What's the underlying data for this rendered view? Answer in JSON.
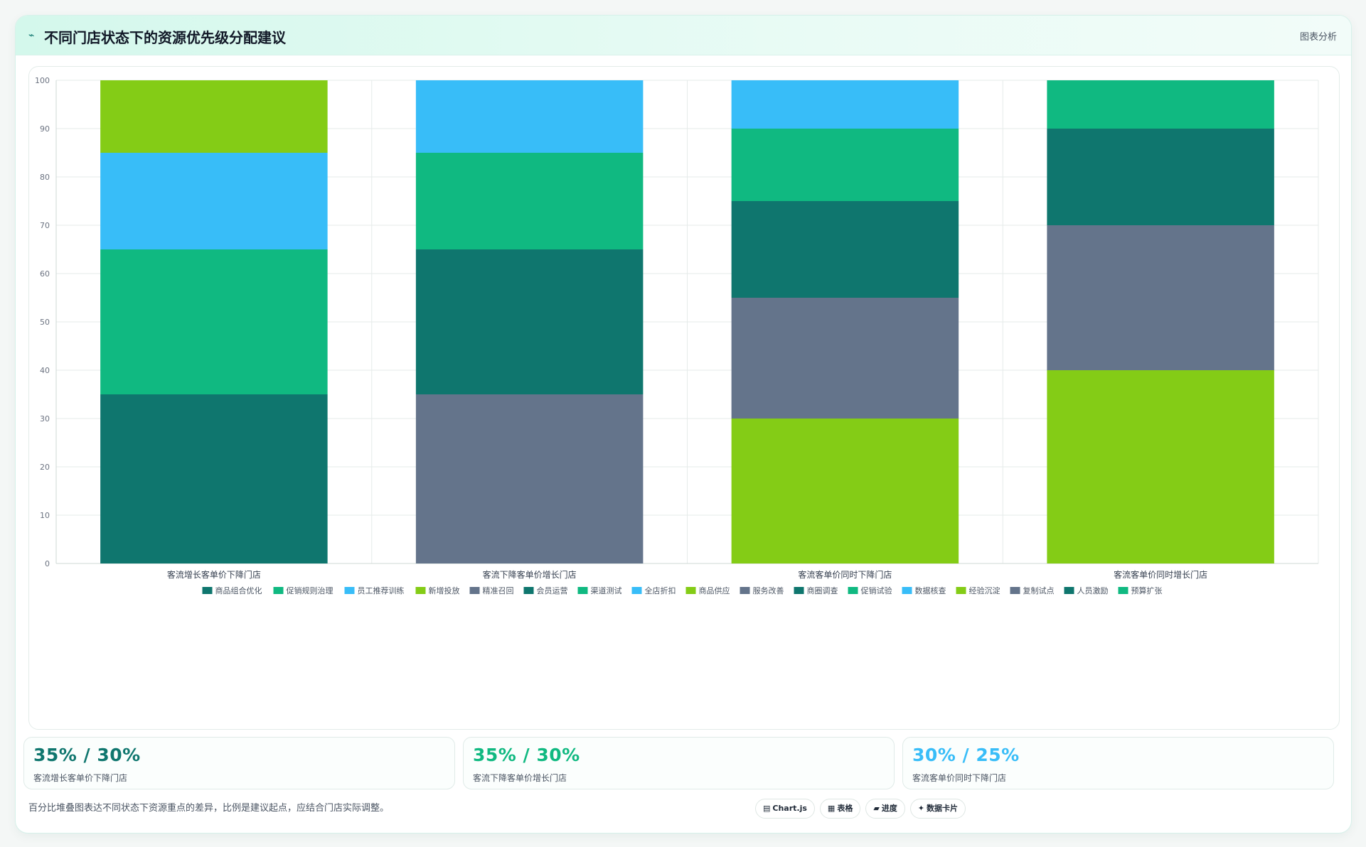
{
  "header": {
    "icon": "sparkle-icon",
    "title": "不同门店状态下的资源优先级分配建议",
    "right_label": "图表分析"
  },
  "chart_data": {
    "type": "bar",
    "stacked": true,
    "title": "",
    "xlabel": "",
    "ylabel": "",
    "ylim": [
      0,
      100
    ],
    "yticks": [
      0,
      10,
      20,
      30,
      40,
      50,
      60,
      70,
      80,
      90,
      100
    ],
    "grid": true,
    "legend_position": "bottom",
    "categories": [
      "客流增长客单价下降门店",
      "客流下降客单价增长门店",
      "客流客单价同时下降门店",
      "客流客单价同时增长门店"
    ],
    "series": [
      {
        "name": "商品组合优化",
        "color": "#0f766e",
        "values": [
          35,
          0,
          0,
          0
        ]
      },
      {
        "name": "促销规则治理",
        "color": "#10b981",
        "values": [
          30,
          0,
          0,
          0
        ]
      },
      {
        "name": "员工推荐训练",
        "color": "#38bdf8",
        "values": [
          20,
          0,
          0,
          0
        ]
      },
      {
        "name": "新增投放",
        "color": "#84cc16",
        "values": [
          15,
          0,
          0,
          0
        ]
      },
      {
        "name": "精准召回",
        "color": "#64748b",
        "values": [
          0,
          35,
          0,
          0
        ]
      },
      {
        "name": "会员运营",
        "color": "#0f766e",
        "values": [
          0,
          30,
          0,
          0
        ]
      },
      {
        "name": "渠道测试",
        "color": "#10b981",
        "values": [
          0,
          20,
          0,
          0
        ]
      },
      {
        "name": "全店折扣",
        "color": "#38bdf8",
        "values": [
          0,
          15,
          0,
          0
        ]
      },
      {
        "name": "商品供应",
        "color": "#84cc16",
        "values": [
          0,
          0,
          30,
          0
        ]
      },
      {
        "name": "服务改善",
        "color": "#64748b",
        "values": [
          0,
          0,
          25,
          0
        ]
      },
      {
        "name": "商圈调查",
        "color": "#0f766e",
        "values": [
          0,
          0,
          20,
          0
        ]
      },
      {
        "name": "促销试验",
        "color": "#10b981",
        "values": [
          0,
          0,
          15,
          0
        ]
      },
      {
        "name": "数据核查",
        "color": "#38bdf8",
        "values": [
          0,
          0,
          10,
          0
        ]
      },
      {
        "name": "经验沉淀",
        "color": "#84cc16",
        "values": [
          0,
          0,
          0,
          40
        ]
      },
      {
        "name": "复制试点",
        "color": "#64748b",
        "values": [
          0,
          0,
          0,
          30
        ]
      },
      {
        "name": "人员激励",
        "color": "#0f766e",
        "values": [
          0,
          0,
          0,
          20
        ]
      },
      {
        "name": "预算扩张",
        "color": "#10b981",
        "values": [
          0,
          0,
          0,
          10
        ]
      }
    ]
  },
  "stats": [
    {
      "value": "35% / 30%",
      "label": "客流增长客单价下降门店",
      "color": "#0f766e"
    },
    {
      "value": "35% / 30%",
      "label": "客流下降客单价增长门店",
      "color": "#10b981"
    },
    {
      "value": "30% / 25%",
      "label": "客流客单价同时下降门店",
      "color": "#38bdf8"
    }
  ],
  "footnote": "百分比堆叠图表达不同状态下资源重点的差异，比例是建议起点，应结合门店实际调整。",
  "chips": [
    {
      "icon": "chart-icon",
      "glyph": "▤",
      "label": "Chart.js"
    },
    {
      "icon": "table-icon",
      "glyph": "▦",
      "label": "表格"
    },
    {
      "icon": "progress-icon",
      "glyph": "▰",
      "label": "进度"
    },
    {
      "icon": "card-icon",
      "glyph": "✦",
      "label": "数据卡片"
    }
  ]
}
